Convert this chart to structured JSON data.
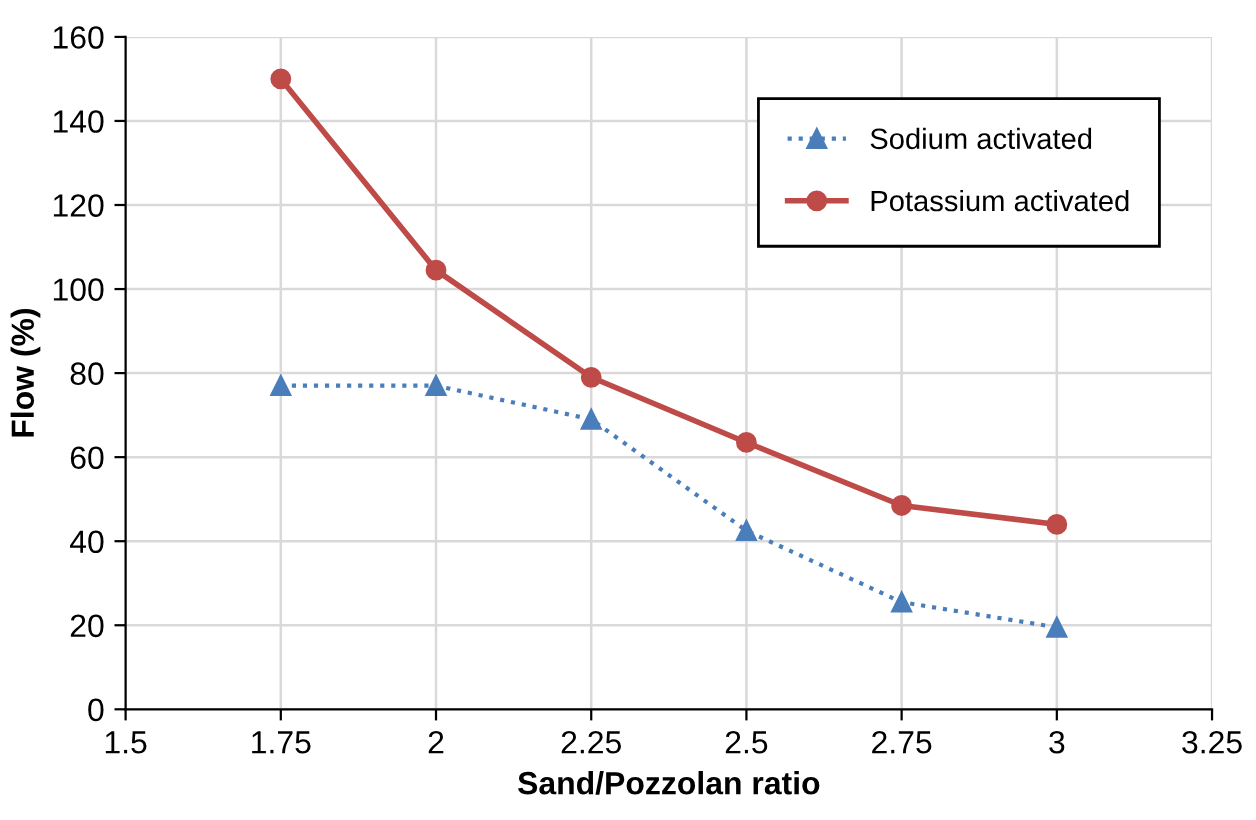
{
  "chart_data": {
    "type": "line",
    "xlabel": "Sand/Pozzolan ratio",
    "ylabel": "Flow (%)",
    "x": [
      1.75,
      2,
      2.25,
      2.5,
      2.75,
      3
    ],
    "series": [
      {
        "name": "Sodium activated",
        "color": "#4a7ebb",
        "marker": "triangle",
        "line_style": "dotted",
        "values": [
          77,
          77,
          69,
          42.5,
          25.5,
          19.5
        ]
      },
      {
        "name": "Potassium activated",
        "color": "#be4b48",
        "marker": "circle",
        "line_style": "solid",
        "values": [
          150,
          104.5,
          79,
          63.5,
          48.5,
          44
        ]
      }
    ],
    "xlim": [
      1.5,
      3.25
    ],
    "xticks": [
      1.5,
      1.75,
      2,
      2.25,
      2.5,
      2.75,
      3,
      3.25
    ],
    "ylim": [
      0,
      160
    ],
    "yticks": [
      0,
      20,
      40,
      60,
      80,
      100,
      120,
      140,
      160
    ],
    "grid": true,
    "legend": "top right"
  }
}
